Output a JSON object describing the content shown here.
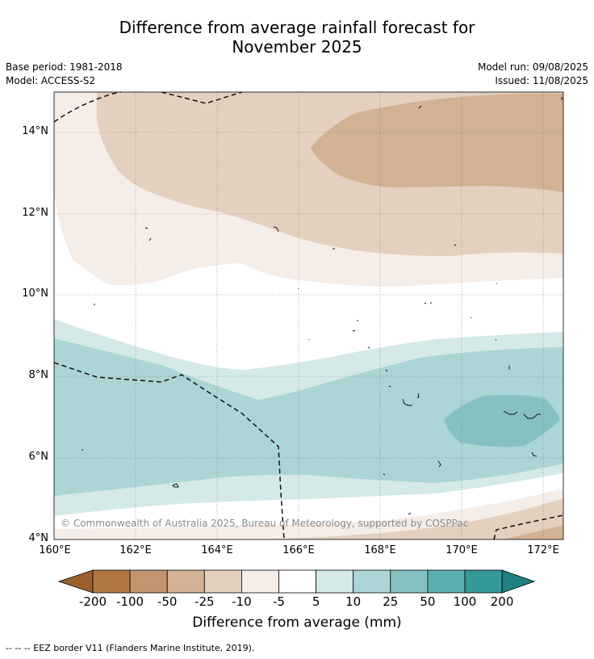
{
  "header": {
    "title_line1": "Difference from average rainfall forecast for",
    "title_line2": "November 2025",
    "base_period": "Base period: 1981-2018",
    "model": "Model: ACCESS-S2",
    "model_run": "Model run: 09/08/2025",
    "issued": "Issued: 11/08/2025"
  },
  "map": {
    "lat_ticks": [
      "14°N",
      "12°N",
      "10°N",
      "8°N",
      "6°N",
      "4°N"
    ],
    "lon_ticks": [
      "160°E",
      "162°E",
      "164°E",
      "166°E",
      "168°E",
      "170°E",
      "172°E"
    ],
    "copyright": "© Commonwealth of Australia 2025, Bureau of Meteorology, supported by COSPPac"
  },
  "colorbar": {
    "labels": [
      "-200",
      "-100",
      "-50",
      "-25",
      "-10",
      "-5",
      "5",
      "10",
      "25",
      "50",
      "100",
      "200"
    ],
    "colors": [
      "#9c5f2e",
      "#b07840",
      "#c29470",
      "#d2b293",
      "#e3d0bf",
      "#f5ede8",
      "#ffffff",
      "#d4e9e8",
      "#acd5d5",
      "#86c1c2",
      "#5aaeae",
      "#35999a",
      "#1e8080"
    ],
    "title": "Difference from average (mm)"
  },
  "legend": {
    "text": "--  --  -- EEZ border V11 (Flanders Marine Institute, 2019)."
  }
}
